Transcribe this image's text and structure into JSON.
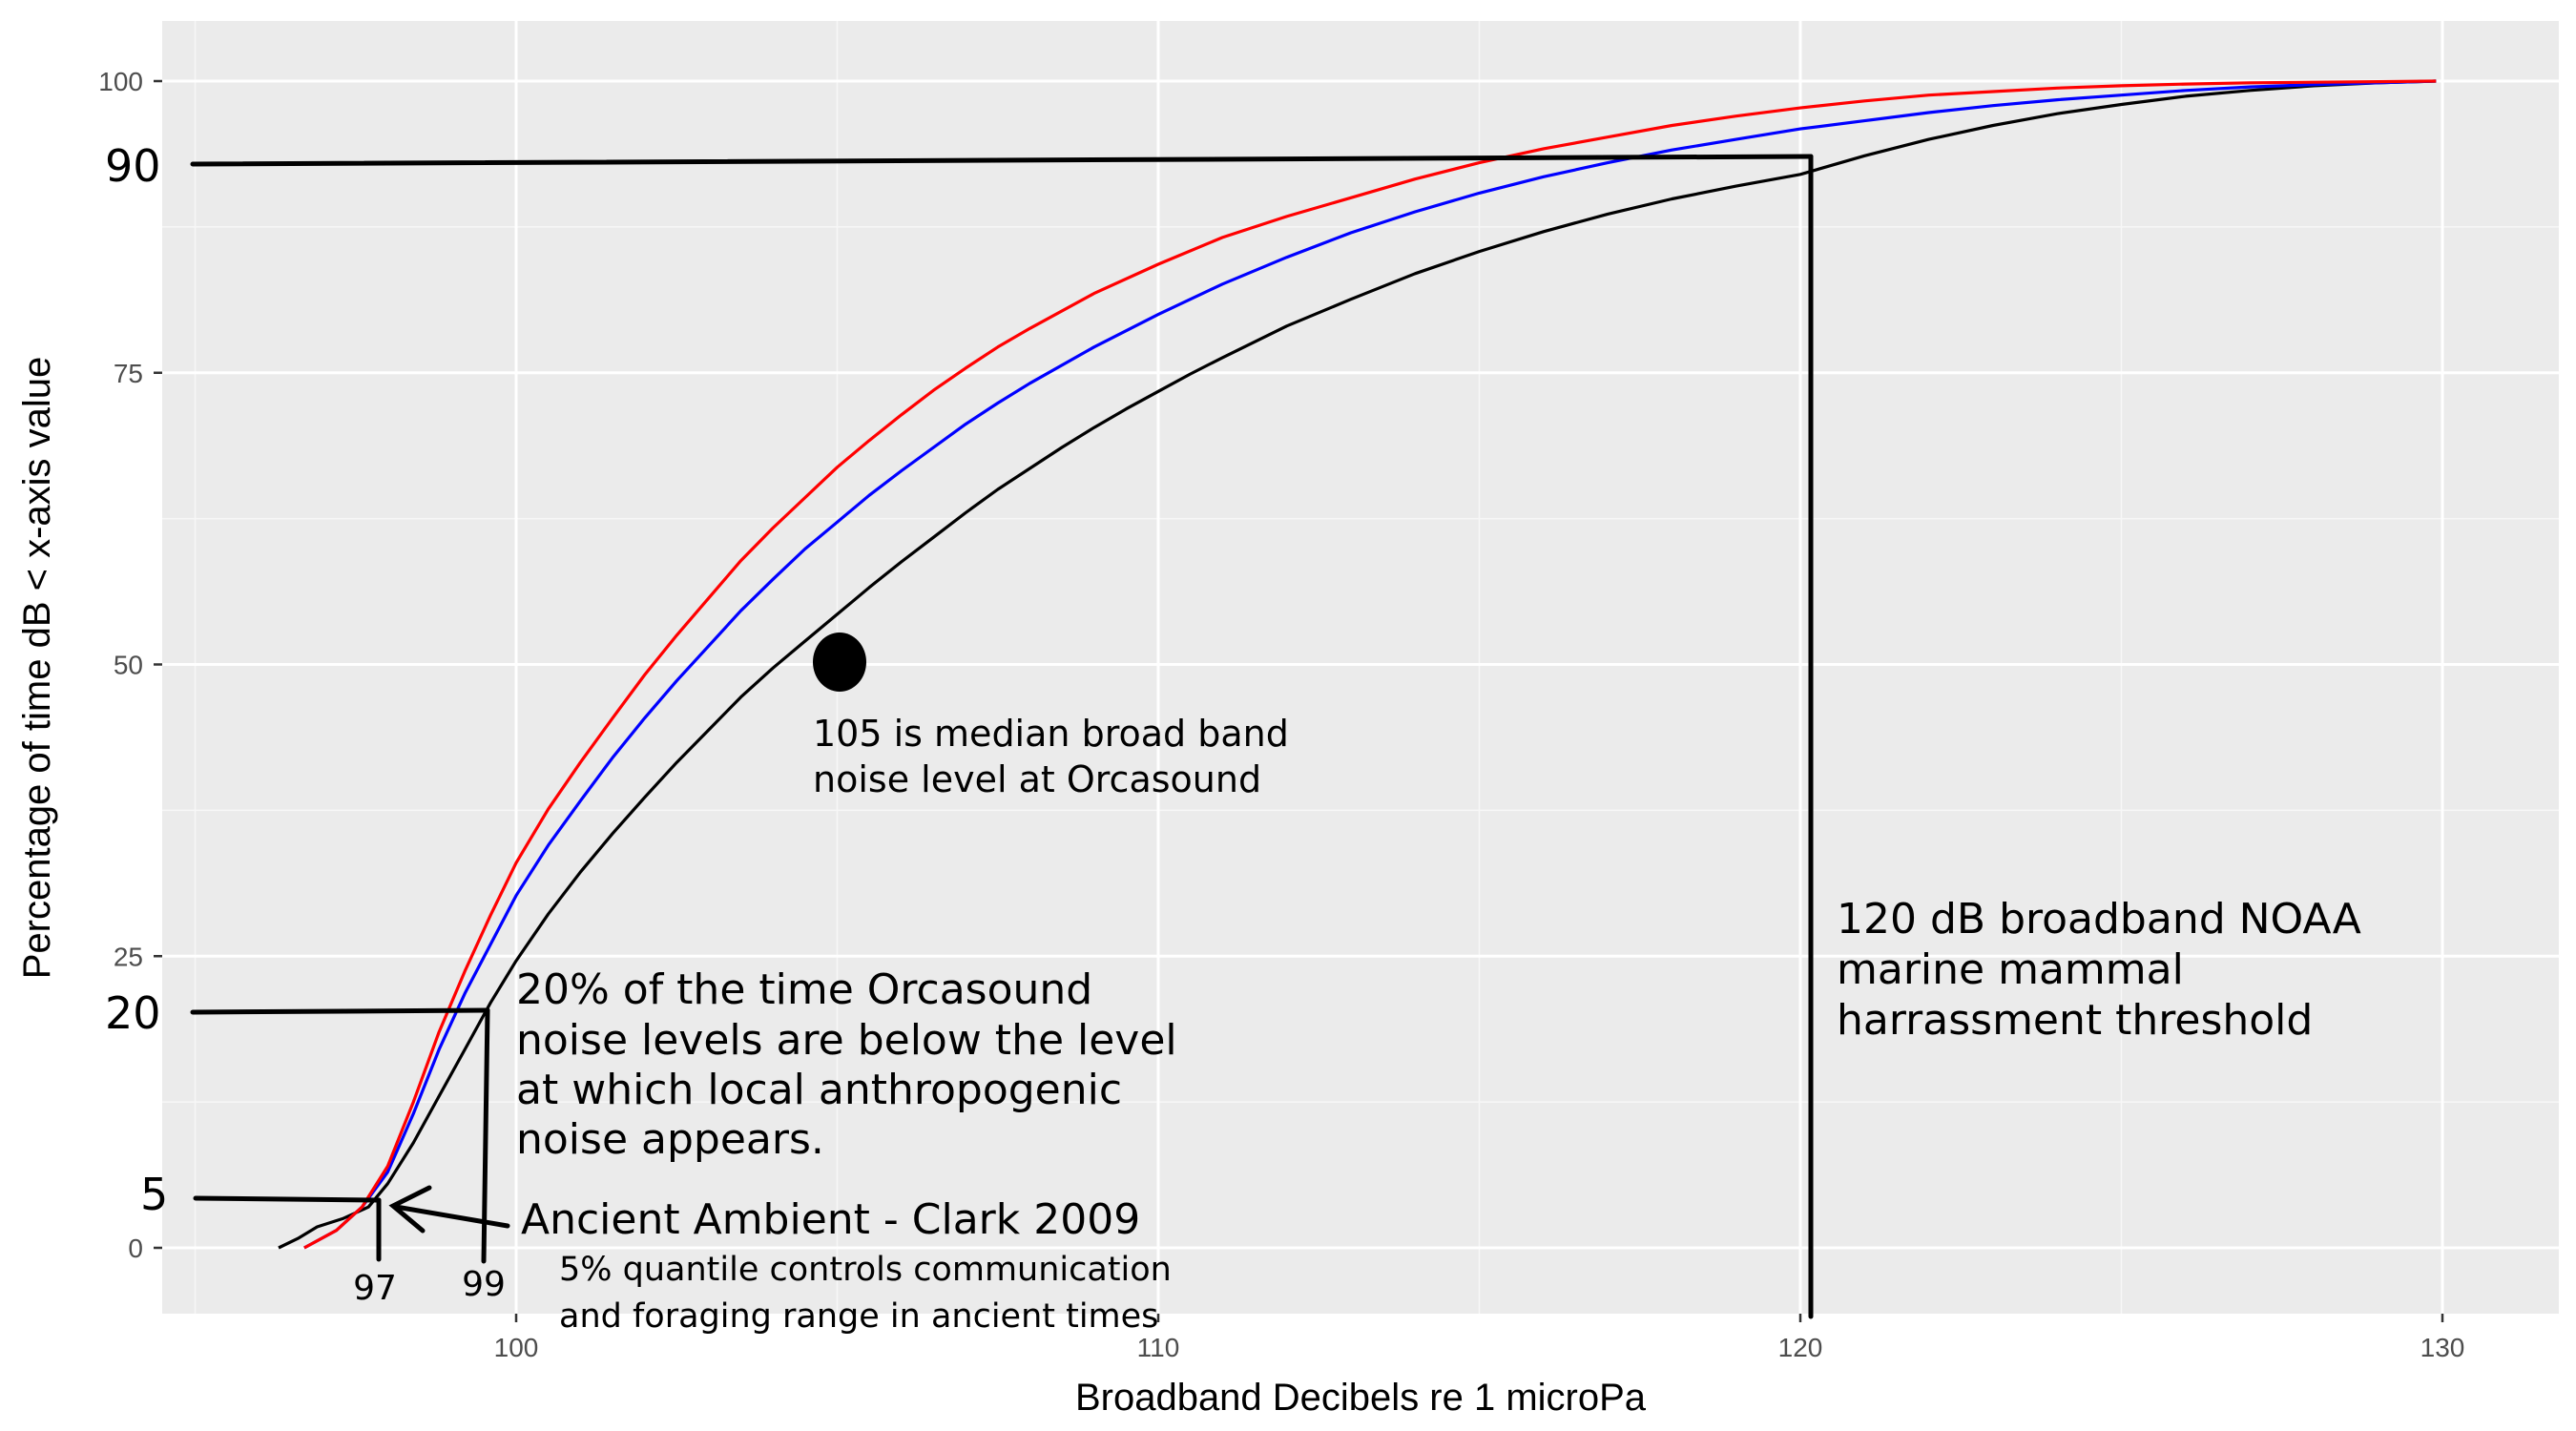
{
  "chart_data": {
    "type": "line",
    "title": "",
    "xlabel": "Broadband Decibels re 1 microPa",
    "ylabel": "Percentage of time dB < x-axis value",
    "xlim": [
      94.5,
      131.2
    ],
    "ylim": [
      -5,
      105
    ],
    "x_ticks": [
      "100",
      "110",
      "120",
      "130"
    ],
    "y_ticks": [
      "0",
      "25",
      "50",
      "75",
      "100"
    ],
    "grid": true,
    "legend": "none",
    "series": [
      {
        "color": "#ff0000",
        "x": [
          96.7,
          97.2,
          97.6,
          98.0,
          98.4,
          98.8,
          99.2,
          99.6,
          100.0,
          100.5,
          101.0,
          101.5,
          102.0,
          102.5,
          103.0,
          103.5,
          104.0,
          104.5,
          105.0,
          105.5,
          106.0,
          106.5,
          107.0,
          107.5,
          108.0,
          109.0,
          110.0,
          111.0,
          112.0,
          113.0,
          114.0,
          115.0,
          116.0,
          117.0,
          118.0,
          119.0,
          120.0,
          121.0,
          122.0,
          123.0,
          124.0,
          125.0,
          126.0,
          127.0,
          128.0,
          129.0,
          129.9
        ],
        "values": [
          0.0,
          1.5,
          3.5,
          7.0,
          12.5,
          18.5,
          23.7,
          28.5,
          33.0,
          37.6,
          41.6,
          45.4,
          49.1,
          52.5,
          55.7,
          58.9,
          61.7,
          64.3,
          66.9,
          69.2,
          71.4,
          73.5,
          75.4,
          77.2,
          78.8,
          81.8,
          84.3,
          86.6,
          88.4,
          90.0,
          91.6,
          93.0,
          94.2,
          95.2,
          96.2,
          97.0,
          97.7,
          98.3,
          98.8,
          99.1,
          99.4,
          99.6,
          99.75,
          99.85,
          99.9,
          99.95,
          100.0
        ]
      },
      {
        "color": "#0000ff",
        "x": [
          96.7,
          97.2,
          97.6,
          98.0,
          98.4,
          98.8,
          99.2,
          99.6,
          100.0,
          100.5,
          101.0,
          101.5,
          102.0,
          102.5,
          103.0,
          103.5,
          104.0,
          104.5,
          105.0,
          105.5,
          106.0,
          106.5,
          107.0,
          107.5,
          108.0,
          109.0,
          110.0,
          111.0,
          112.0,
          113.0,
          114.0,
          115.0,
          116.0,
          117.0,
          118.0,
          119.0,
          120.0,
          121.0,
          122.0,
          123.0,
          124.0,
          125.0,
          126.0,
          127.0,
          128.0,
          129.0,
          129.9
        ],
        "values": [
          0.0,
          1.5,
          3.5,
          6.5,
          11.5,
          17.0,
          21.8,
          26.0,
          30.2,
          34.5,
          38.3,
          42.0,
          45.4,
          48.6,
          51.6,
          54.6,
          57.3,
          59.9,
          62.2,
          64.5,
          66.6,
          68.6,
          70.6,
          72.4,
          74.1,
          77.2,
          80.0,
          82.6,
          84.9,
          87.0,
          88.8,
          90.4,
          91.8,
          93.0,
          94.1,
          95.0,
          95.9,
          96.6,
          97.3,
          97.9,
          98.4,
          98.8,
          99.2,
          99.5,
          99.7,
          99.85,
          100.0
        ]
      },
      {
        "color": "#000000",
        "x": [
          96.3,
          96.6,
          96.9,
          97.3,
          97.7,
          98.0,
          98.4,
          98.8,
          99.2,
          99.6,
          100.0,
          100.5,
          101.0,
          101.5,
          102.0,
          102.5,
          103.0,
          103.5,
          104.0,
          104.5,
          105.0,
          105.5,
          106.0,
          106.5,
          107.0,
          107.5,
          108.0,
          108.5,
          109.0,
          109.5,
          110.0,
          110.5,
          111.0,
          112.0,
          113.0,
          114.0,
          115.0,
          116.0,
          117.0,
          118.0,
          119.0,
          120.0,
          121.0,
          122.0,
          123.0,
          124.0,
          125.0,
          126.0,
          127.0,
          128.0,
          129.0,
          129.9
        ],
        "values": [
          0.0,
          0.8,
          1.8,
          2.5,
          3.5,
          5.5,
          9.0,
          13.0,
          17.0,
          21.0,
          24.6,
          28.6,
          32.2,
          35.5,
          38.6,
          41.6,
          44.4,
          47.2,
          49.7,
          52.0,
          54.3,
          56.6,
          58.8,
          60.9,
          63.0,
          65.0,
          66.8,
          68.6,
          70.3,
          71.9,
          73.4,
          74.9,
          76.3,
          79.0,
          81.3,
          83.5,
          85.4,
          87.1,
          88.6,
          89.9,
          91.0,
          92.0,
          93.6,
          95.0,
          96.2,
          97.2,
          98.0,
          98.7,
          99.2,
          99.6,
          99.85,
          100.0
        ]
      }
    ],
    "guide_lines": [
      {
        "x": 97.7,
        "y": 5,
        "label": "97"
      },
      {
        "x": 99.5,
        "y": 21,
        "label": "99"
      },
      {
        "x": 120,
        "y": 93
      }
    ],
    "median_marker": {
      "x": 104.9,
      "y": 50.5
    },
    "hand_labels": {
      "y90": "90",
      "y20": "20",
      "y5": "5",
      "x97": "97",
      "x99": "99"
    },
    "annotations": {
      "median": [
        "105 is median broad band",
        "noise level at Orcasound"
      ],
      "noaa": [
        "120 dB broadband NOAA",
        "marine mammal",
        "harrassment threshold"
      ],
      "twenty": [
        "20% of the time Orcasound",
        "noise levels are below the level",
        "at which local anthropogenic",
        "noise appears."
      ],
      "ancient": "Ancient Ambient - Clark 2009",
      "quantile": [
        "5% quantile controls communication",
        "and foraging range in ancient times"
      ]
    }
  }
}
